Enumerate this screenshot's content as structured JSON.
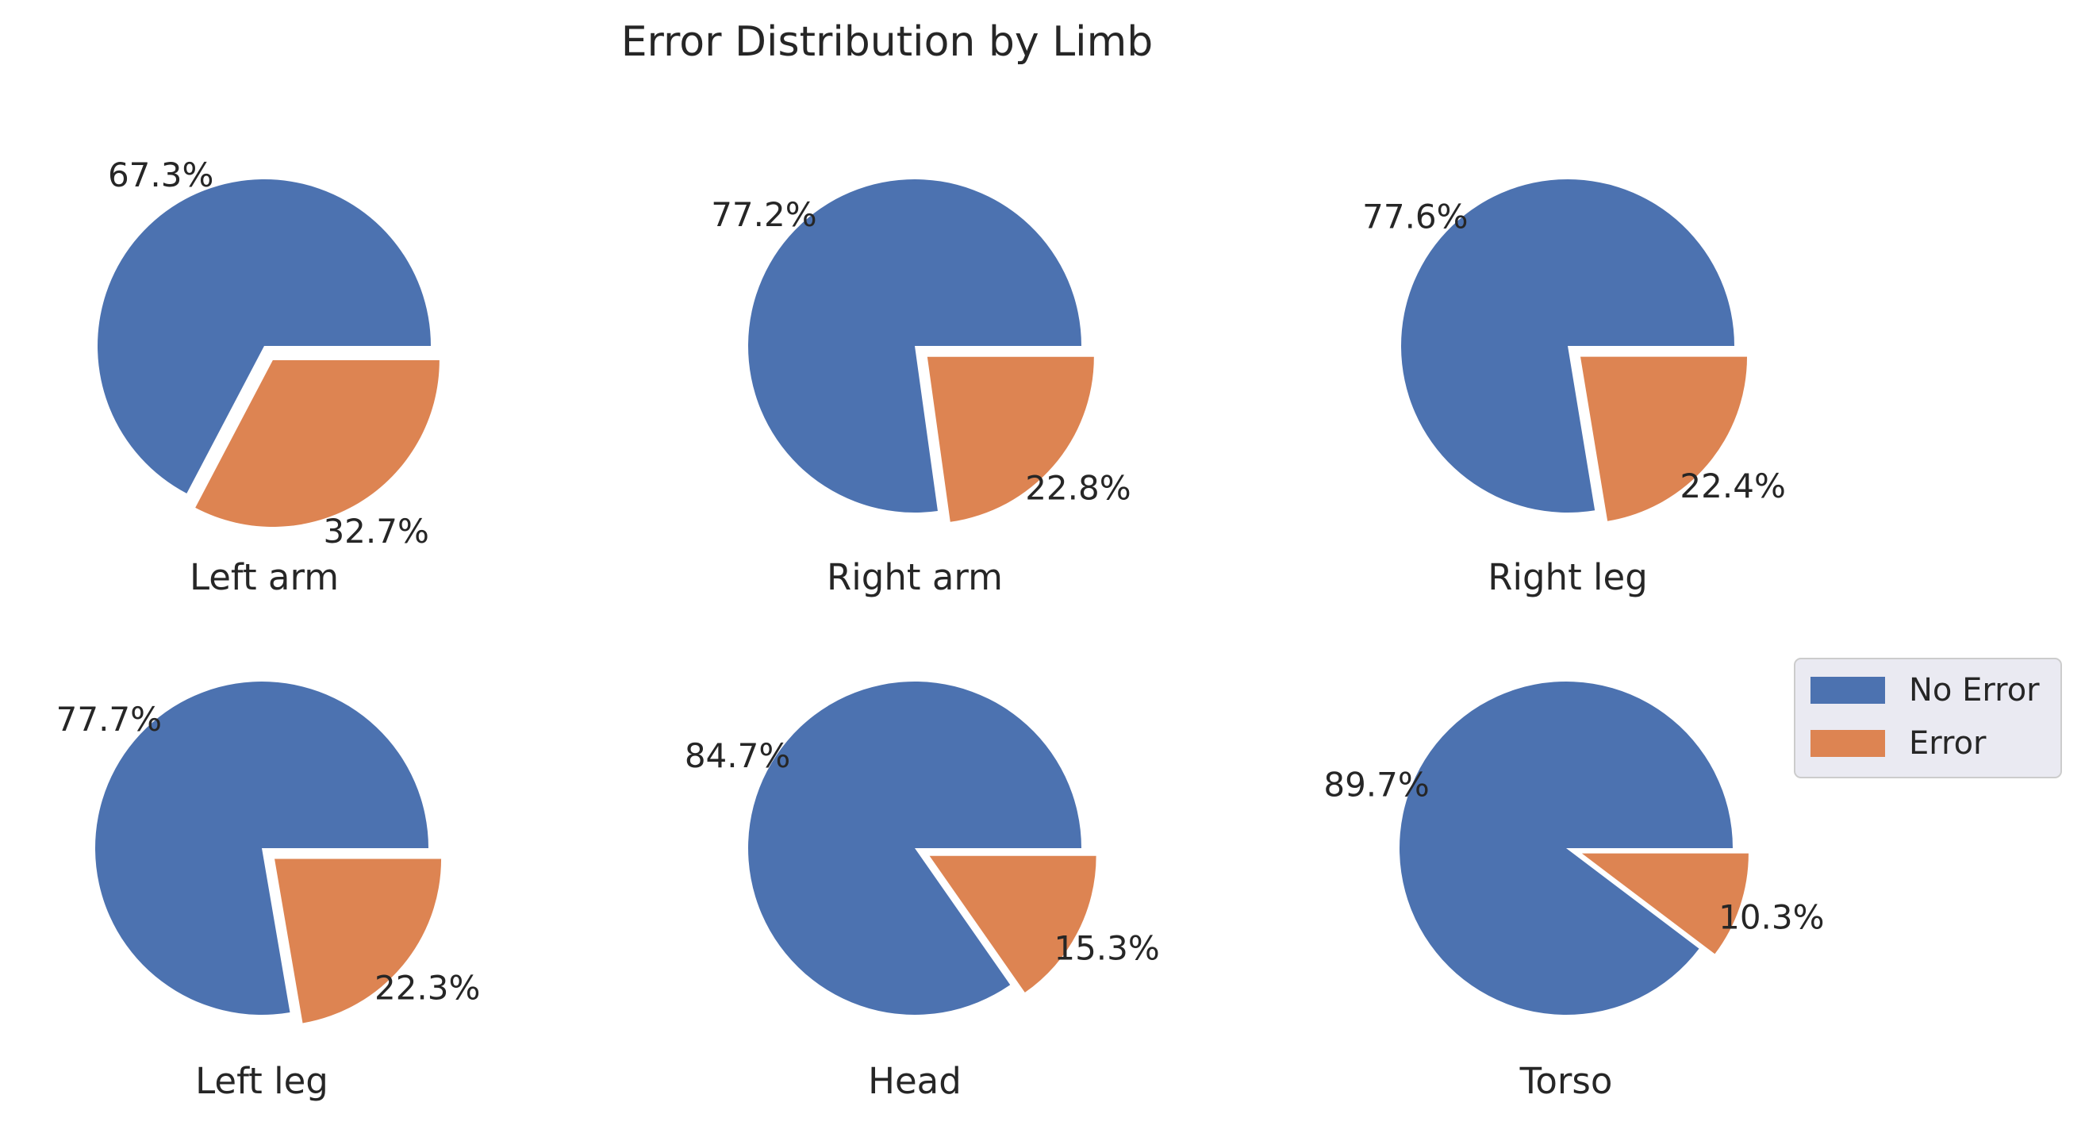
{
  "chart_data": {
    "type": "pie",
    "title": "Error Distribution by Limb",
    "series_names": [
      "No Error",
      "Error"
    ],
    "colors": {
      "No Error": "#4C72B0",
      "Error": "#DD8452"
    },
    "legend": {
      "placement": "right",
      "entries": [
        "No Error",
        "Error"
      ]
    },
    "pies": [
      {
        "label": "Left arm",
        "values": [
          67.3,
          32.7
        ],
        "labels": [
          "67.3%",
          "32.7%"
        ]
      },
      {
        "label": "Right arm",
        "values": [
          77.2,
          22.8
        ],
        "labels": [
          "77.2%",
          "22.8%"
        ]
      },
      {
        "label": "Right leg",
        "values": [
          77.6,
          22.4
        ],
        "labels": [
          "77.6%",
          "22.4%"
        ]
      },
      {
        "label": "Left leg",
        "values": [
          77.7,
          22.3
        ],
        "labels": [
          "77.7%",
          "22.3%"
        ]
      },
      {
        "label": "Head",
        "values": [
          84.7,
          15.3
        ],
        "labels": [
          "84.7%",
          "15.3%"
        ]
      },
      {
        "label": "Torso",
        "values": [
          89.7,
          10.3
        ],
        "labels": [
          "89.7%",
          "10.3%"
        ]
      }
    ]
  }
}
